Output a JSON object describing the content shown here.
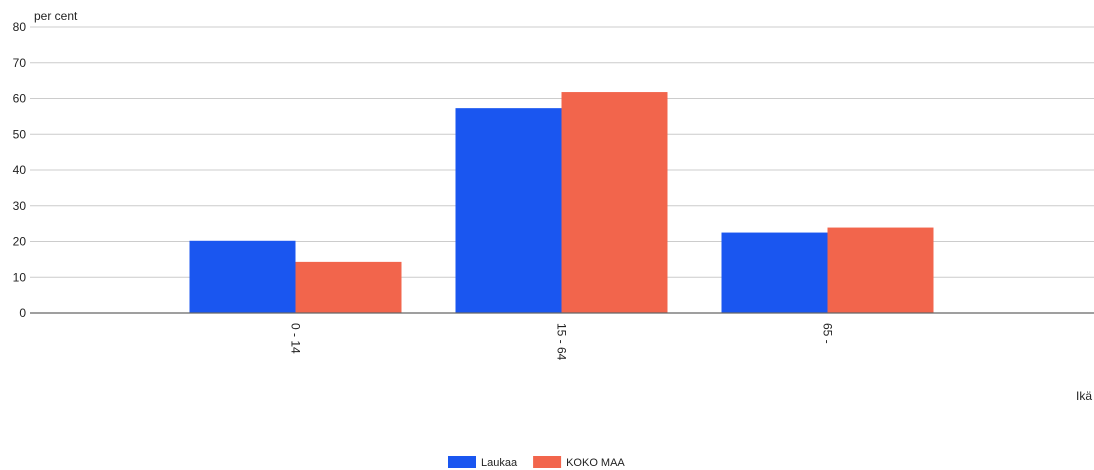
{
  "chart_data": {
    "type": "bar",
    "ylabel": "per cent",
    "xlabel": "Ikä",
    "categories": [
      "0 - 14",
      "15 - 64",
      "65 -"
    ],
    "ylim": [
      0,
      80
    ],
    "yticks": [
      0,
      10,
      20,
      30,
      40,
      50,
      60,
      70,
      80
    ],
    "grid": true,
    "legend_position": "bottom",
    "series": [
      {
        "name": "Laukaa",
        "color": "#1a56f0",
        "values": [
          20.2,
          57.3,
          22.5
        ]
      },
      {
        "name": "KOKO MAA",
        "color": "#f2654c",
        "values": [
          14.3,
          61.8,
          23.9
        ]
      }
    ]
  }
}
